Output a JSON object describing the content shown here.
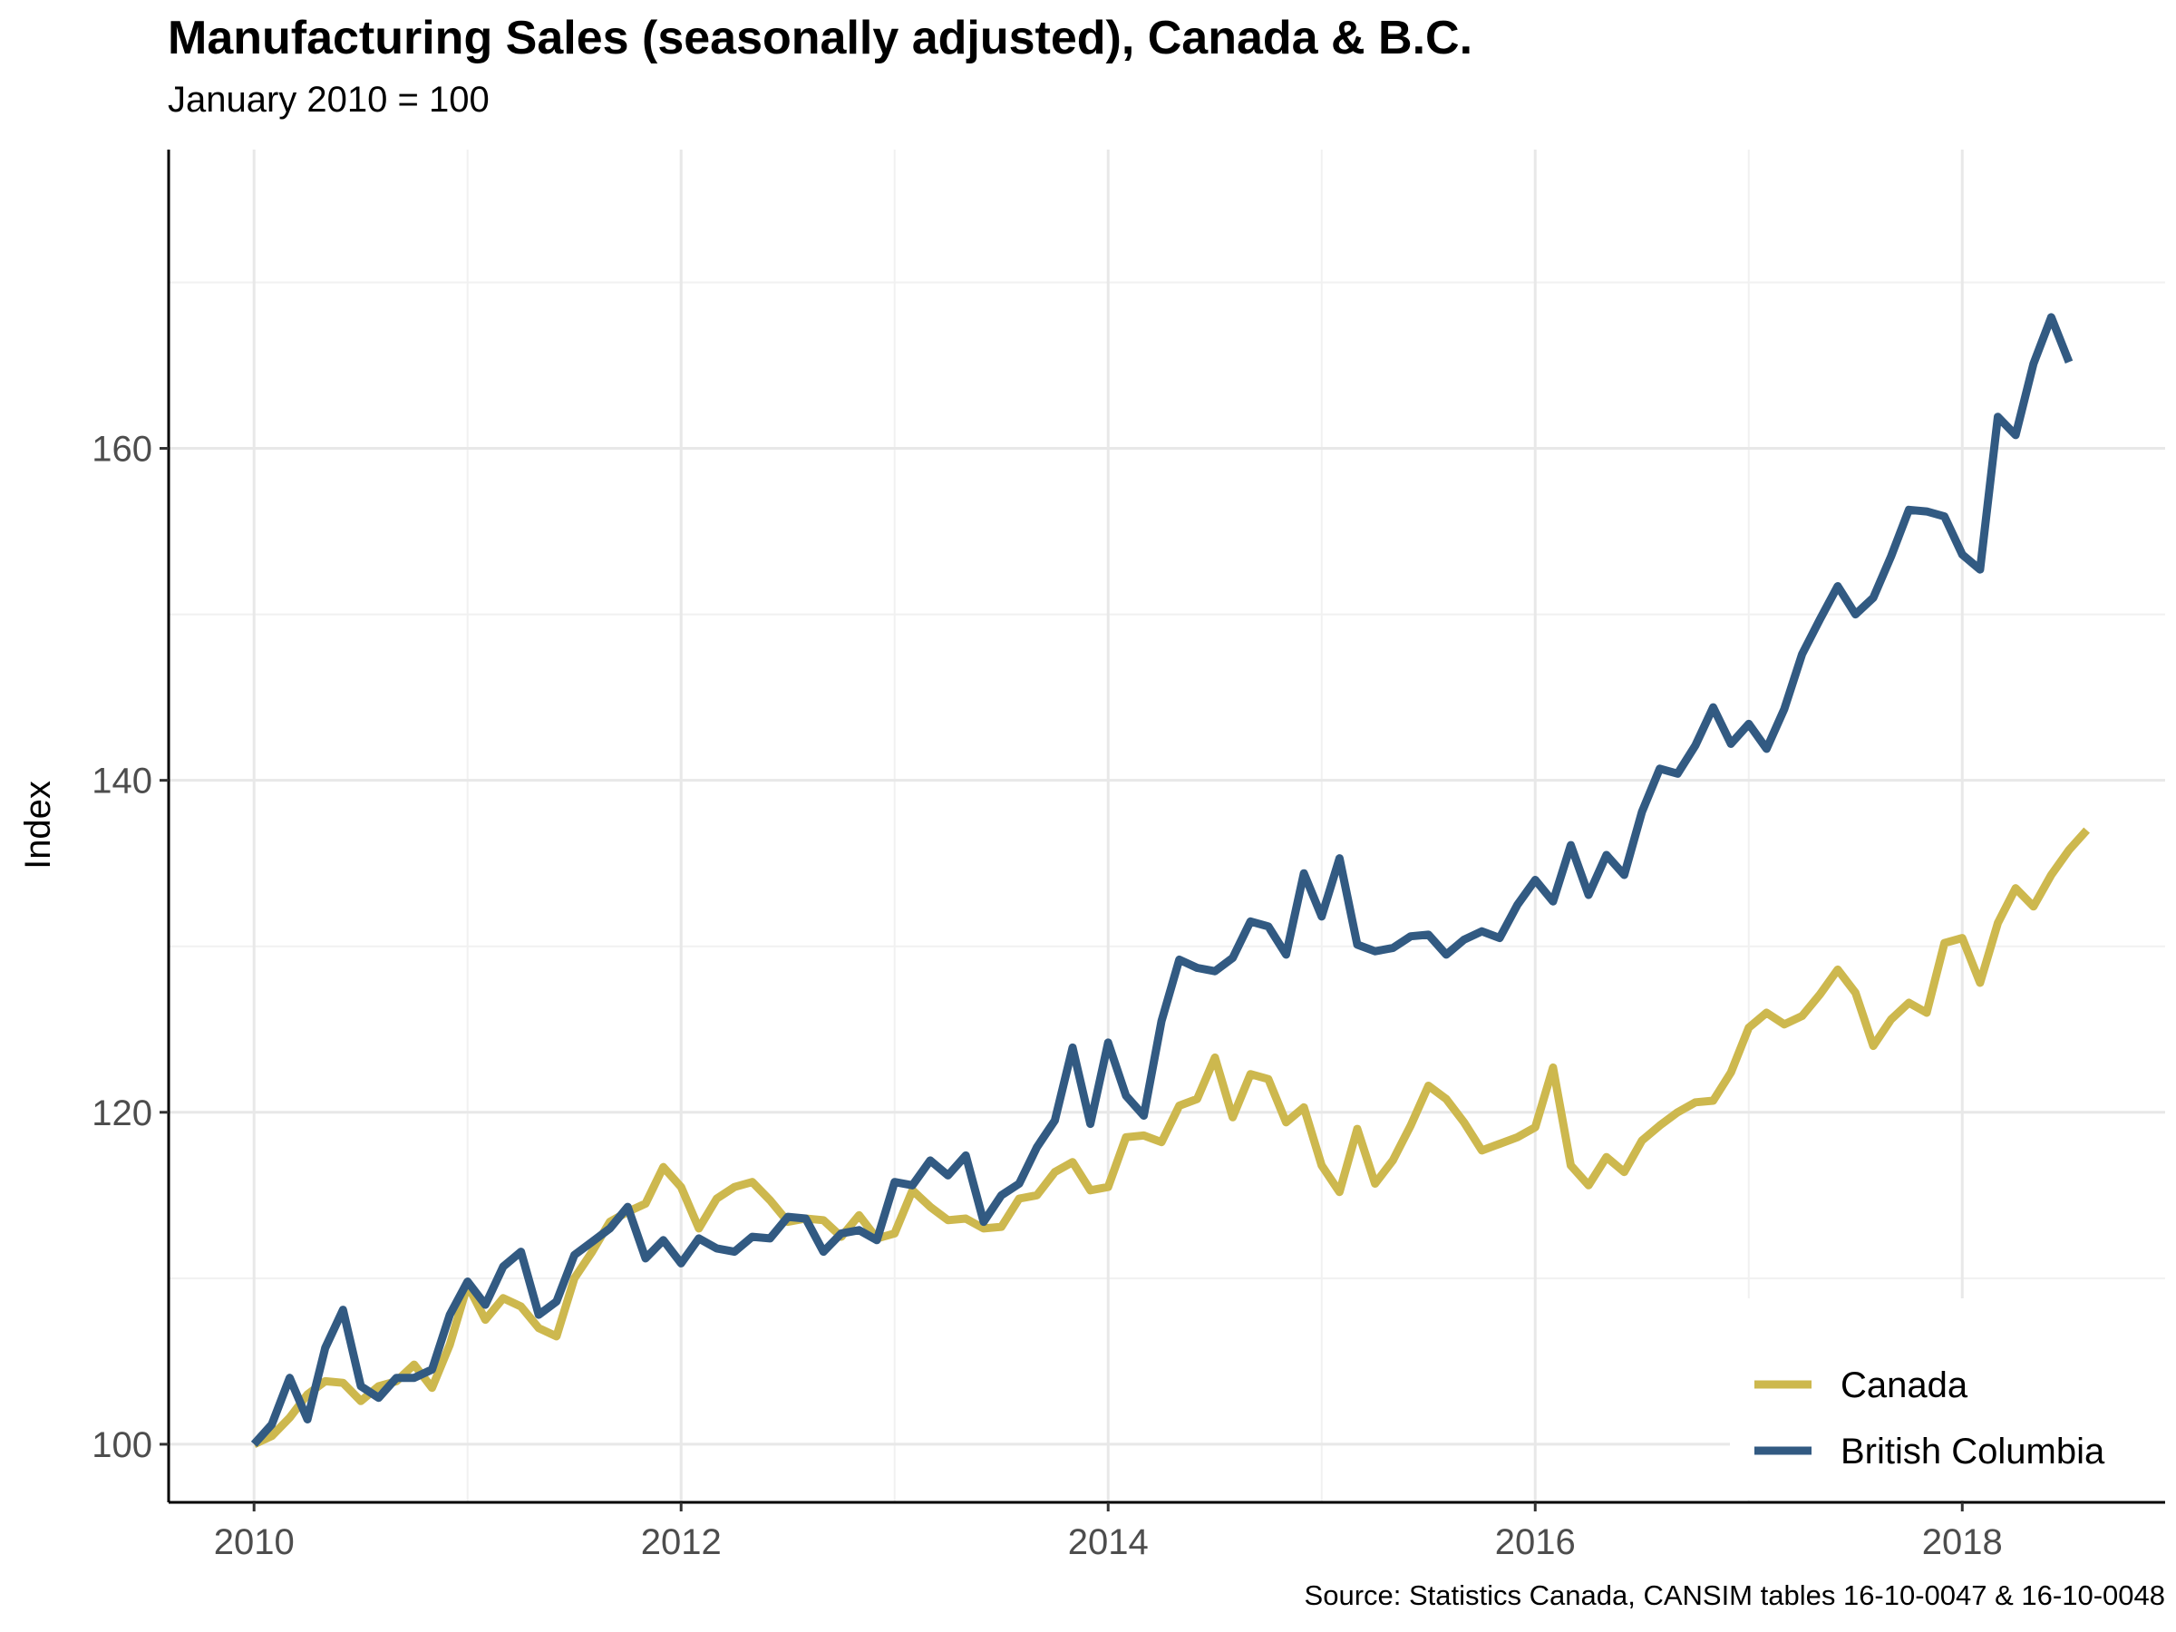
{
  "chart_data": {
    "type": "line",
    "title": "Manufacturing Sales (seasonally adjusted), Canada & B.C.",
    "subtitle": "January 2010 = 100",
    "caption": "Source: Statistics Canada, CANSIM tables 16-10-0047 & 16-10-0048",
    "xlabel": "",
    "ylabel": "Index",
    "x_start": "2010-01",
    "x_frequency": "monthly",
    "xlim": [
      2009.6,
      2018.95
    ],
    "ylim": [
      96.5,
      178
    ],
    "x_ticks": [
      2010,
      2012,
      2014,
      2016,
      2018
    ],
    "x_tick_labels": [
      "2010",
      "2012",
      "2014",
      "2016",
      "2018"
    ],
    "y_ticks": [
      100,
      120,
      140,
      160
    ],
    "y_tick_labels": [
      "100",
      "120",
      "140",
      "160"
    ],
    "grid": true,
    "legend_position": "bottom-right",
    "series": [
      {
        "name": "Canada",
        "color": "#CDB84E",
        "values": [
          100,
          100.5,
          101.6,
          103,
          103.8,
          103.7,
          102.6,
          103.5,
          103.8,
          104.8,
          103.4,
          106,
          109.6,
          107.5,
          108.8,
          108.3,
          107,
          106.5,
          110,
          111.6,
          113.4,
          114,
          114.5,
          116.7,
          115.5,
          113,
          114.8,
          115.5,
          115.8,
          114.7,
          113.4,
          113.6,
          113.5,
          112.5,
          113.8,
          112.4,
          112.7,
          115.3,
          114.3,
          113.5,
          113.6,
          113,
          113.1,
          114.8,
          115,
          116.4,
          117,
          115.3,
          115.5,
          118.5,
          118.6,
          118.2,
          120.4,
          120.8,
          123.3,
          119.7,
          122.3,
          122,
          119.4,
          120.3,
          116.8,
          115.2,
          119,
          115.7,
          117.1,
          119.2,
          121.6,
          120.8,
          119.4,
          117.7,
          118.1,
          118.5,
          119.1,
          122.7,
          116.8,
          115.6,
          117.3,
          116.4,
          118.3,
          119.2,
          120,
          120.6,
          120.7,
          122.4,
          125.1,
          126,
          125.3,
          125.8,
          127.1,
          128.6,
          127.2,
          124,
          125.6,
          126.6,
          126,
          130.2,
          130.5,
          127.8,
          131.4,
          133.5,
          132.4,
          134.3,
          135.8,
          137
        ]
      },
      {
        "name": "British Columbia",
        "color": "#325A82",
        "values": [
          100,
          101.2,
          104,
          101.5,
          105.8,
          108.1,
          103.5,
          102.8,
          104,
          104,
          104.5,
          107.8,
          109.8,
          108.4,
          110.7,
          111.6,
          107.8,
          108.6,
          111.4,
          112.2,
          113,
          114.3,
          111.2,
          112.3,
          110.9,
          112.4,
          111.8,
          111.6,
          112.5,
          112.4,
          113.7,
          113.6,
          111.6,
          112.7,
          112.9,
          112.3,
          115.8,
          115.6,
          117.1,
          116.2,
          117.4,
          113.4,
          115,
          115.7,
          117.9,
          119.5,
          123.9,
          119.3,
          124.2,
          121,
          119.8,
          125.5,
          129.2,
          128.7,
          128.5,
          129.3,
          131.5,
          131.2,
          129.5,
          134.4,
          131.8,
          135.3,
          130.1,
          129.7,
          129.9,
          130.6,
          130.7,
          129.5,
          130.4,
          130.9,
          130.5,
          132.5,
          134,
          132.7,
          136.1,
          133.1,
          135.5,
          134.3,
          138.1,
          140.7,
          140.4,
          142.1,
          144.4,
          142.2,
          143.4,
          141.9,
          144.3,
          147.6,
          149.7,
          151.7,
          150,
          151,
          153.5,
          156.3,
          156.2,
          155.9,
          153.6,
          152.7,
          161.9,
          160.8,
          165.1,
          167.9,
          165.2
        ]
      }
    ]
  }
}
